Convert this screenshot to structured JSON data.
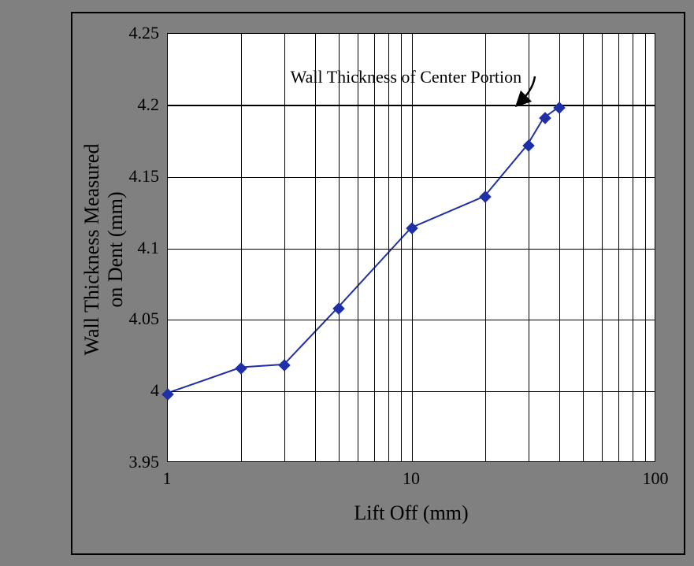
{
  "chart": {
    "type": "line",
    "background_color": "#808080",
    "plot_background": "#ffffff",
    "grid_color": "#000000",
    "series_color": "#1f2fa8",
    "marker_style": "diamond",
    "marker_size": 11,
    "line_width": 2,
    "x_scale": "log",
    "y_scale": "linear",
    "xlim": [
      1,
      100
    ],
    "ylim": [
      3.95,
      4.25
    ],
    "x_ticks_major": [
      1,
      10,
      100
    ],
    "x_ticks_minor": [
      2,
      3,
      4,
      5,
      6,
      7,
      8,
      9,
      20,
      30,
      40,
      50,
      60,
      70,
      80,
      90
    ],
    "y_ticks": [
      3.95,
      4.0,
      4.05,
      4.1,
      4.15,
      4.2,
      4.25
    ],
    "y_tick_labels": [
      "3.95",
      "4",
      "4.05",
      "4.1",
      "4.15",
      "4.2",
      "4.25"
    ],
    "x_tick_labels": [
      "1",
      "10",
      "100"
    ],
    "xlabel": "Lift Off (mm)",
    "ylabel_line1": "Wall Thickness Measured",
    "ylabel_line2": "on Dent (mm)",
    "label_fontsize": 26,
    "tick_fontsize": 22,
    "reference_line_y": 4.2,
    "reference_line_width": 2.5,
    "annotation_text": "Wall Thickness of Center Portion",
    "annotation_fontsize": 22,
    "data": {
      "x": [
        1,
        2,
        3,
        5,
        10,
        20,
        30,
        35,
        40
      ],
      "y": [
        3.998,
        4.016,
        4.018,
        4.058,
        4.114,
        4.136,
        4.172,
        4.191,
        4.198
      ]
    }
  }
}
